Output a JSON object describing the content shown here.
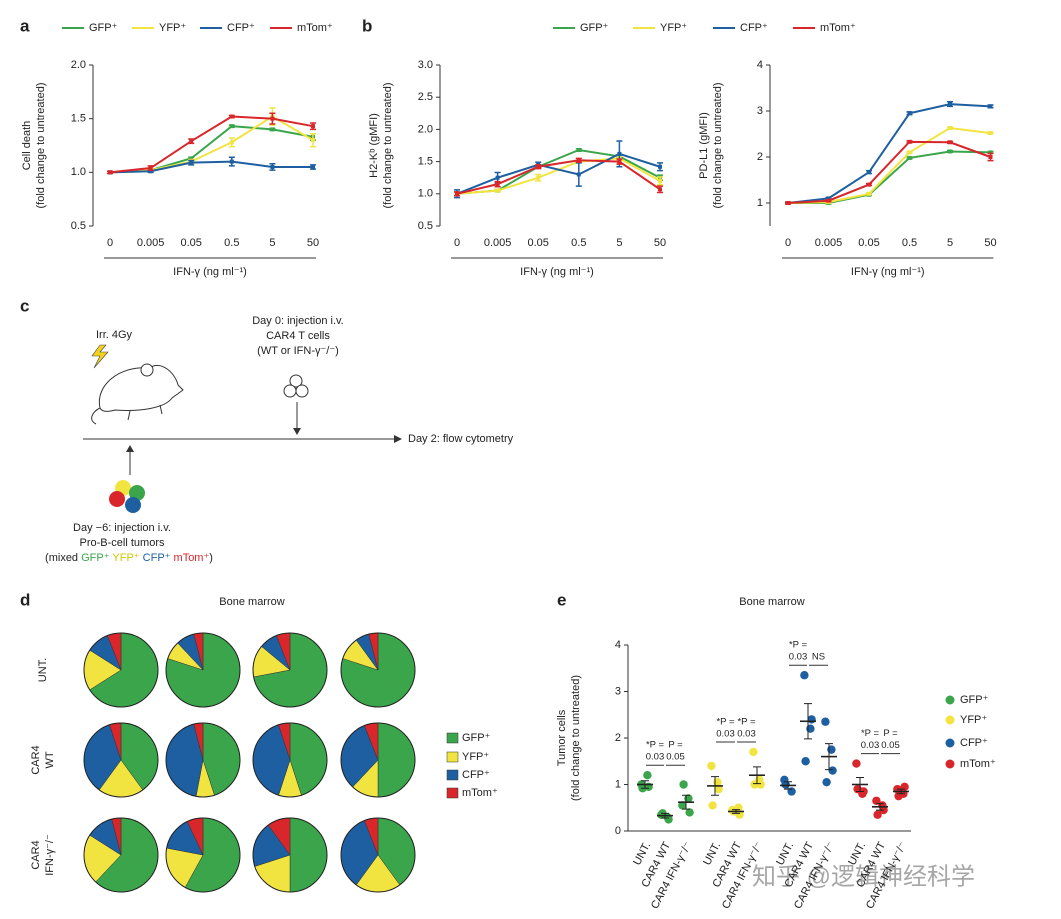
{
  "panel_labels": [
    "a",
    "b",
    "c",
    "d",
    "e"
  ],
  "chart_data": [
    {
      "type": "line",
      "ylabel": [
        "Cell death",
        "(fold change to untreated)"
      ],
      "xlabel": "IFN-γ (ng ml⁻¹)",
      "categories": [
        "0",
        "0.005",
        "0.05",
        "0.5",
        "5",
        "50"
      ],
      "ylim": [
        0.5,
        2.0
      ],
      "yticks": [
        0.5,
        {
          "value": 1.0,
          "label": "1.0"
        },
        1.5,
        {
          "value": 2.0,
          "label": "2.0"
        }
      ],
      "series": [
        {
          "name": "GFP⁺",
          "color": "#3aa54a",
          "values": [
            1.0,
            1.02,
            1.13,
            1.43,
            1.4,
            1.33
          ],
          "errors": [
            0.01,
            0.01,
            0.01,
            0.01,
            0.01,
            0.03
          ]
        },
        {
          "name": "YFP⁺",
          "color": "#f2e440",
          "values": [
            1.0,
            1.02,
            1.1,
            1.28,
            1.52,
            1.3
          ],
          "errors": [
            0.01,
            0.01,
            0.02,
            0.04,
            0.08,
            0.06
          ]
        },
        {
          "name": "CFP⁺",
          "color": "#1d5fa0",
          "values": [
            1.0,
            1.01,
            1.09,
            1.1,
            1.05,
            1.05
          ],
          "errors": [
            0.01,
            0.01,
            0.02,
            0.04,
            0.03,
            0.02
          ]
        },
        {
          "name": "mTom⁺",
          "color": "#d8262b",
          "values": [
            1.0,
            1.04,
            1.29,
            1.52,
            1.5,
            1.43
          ],
          "errors": [
            0.01,
            0.02,
            0.02,
            0.01,
            0.05,
            0.03
          ]
        }
      ]
    },
    {
      "type": "line",
      "ylabel": [
        "H2-Kᵇ (gMFI)",
        "(fold change to untreated)"
      ],
      "xlabel": "IFN-γ (ng ml⁻¹)",
      "categories": [
        "0",
        "0.005",
        "0.05",
        "0.5",
        "5",
        "50"
      ],
      "ylim": [
        0.5,
        3.0
      ],
      "yticks": [
        0.5,
        {
          "value": 1.0,
          "label": "1.0"
        },
        1.5,
        {
          "value": 2.0,
          "label": "2.0"
        },
        2.5,
        {
          "value": 3.0,
          "label": "3.0"
        }
      ],
      "series": [
        {
          "name": "GFP⁺",
          "color": "#3aa54a",
          "values": [
            1.0,
            1.05,
            1.42,
            1.68,
            1.58,
            1.25
          ],
          "errors": [
            0.02,
            0.02,
            0.02,
            0.02,
            0.02,
            0.04
          ]
        },
        {
          "name": "YFP⁺",
          "color": "#f2e440",
          "values": [
            1.0,
            1.05,
            1.25,
            1.5,
            1.55,
            1.2
          ],
          "errors": [
            0.02,
            0.02,
            0.05,
            0.02,
            0.03,
            0.06
          ]
        },
        {
          "name": "CFP⁺",
          "color": "#1d5fa0",
          "values": [
            1.0,
            1.25,
            1.45,
            1.3,
            1.62,
            1.42
          ],
          "errors": [
            0.06,
            0.08,
            0.04,
            0.18,
            0.2,
            0.06
          ]
        },
        {
          "name": "mTom⁺",
          "color": "#d8262b",
          "values": [
            1.0,
            1.15,
            1.42,
            1.52,
            1.5,
            1.07
          ],
          "errors": [
            0.03,
            0.04,
            0.03,
            0.03,
            0.04,
            0.05
          ]
        }
      ]
    },
    {
      "type": "line",
      "ylabel": [
        "PD-L1 (gMFI)",
        "(fold change to untreated)"
      ],
      "xlabel": "IFN-γ (ng ml⁻¹)",
      "categories": [
        "0",
        "0.005",
        "0.05",
        "0.5",
        "5",
        "50"
      ],
      "ylim": [
        0.5,
        4
      ],
      "yticks": [
        1,
        2,
        3,
        4
      ],
      "series": [
        {
          "color": "#3aa54a",
          "values": [
            1.0,
            1.0,
            1.18,
            1.98,
            2.12,
            2.1
          ],
          "errors": [
            0.02,
            0.02,
            0.02,
            0.02,
            0.02,
            0.02
          ]
        },
        {
          "color": "#f2e440",
          "values": [
            1.0,
            1.02,
            1.2,
            2.1,
            2.63,
            2.52
          ],
          "errors": [
            0.02,
            0.02,
            0.02,
            0.02,
            0.02,
            0.02
          ]
        },
        {
          "color": "#1d5fa0",
          "values": [
            1.0,
            1.1,
            1.67,
            2.95,
            3.15,
            3.1
          ],
          "errors": [
            0.02,
            0.02,
            0.03,
            0.03,
            0.05,
            0.03
          ]
        },
        {
          "color": "#d8262b",
          "values": [
            1.0,
            1.05,
            1.4,
            2.33,
            2.32,
            2.0
          ],
          "errors": [
            0.02,
            0.02,
            0.02,
            0.02,
            0.02,
            0.08
          ]
        }
      ]
    },
    {
      "type": "pie",
      "title": "Bone marrow",
      "categories": [
        "GFP⁺",
        "YFP⁺",
        "CFP⁺",
        "mTom⁺"
      ],
      "colors": [
        "#3aa54a",
        "#f2e440",
        "#1d5fa0",
        "#d8262b"
      ],
      "rows": [
        {
          "label": [
            "UNT."
          ],
          "pies": [
            [
              66,
              18,
              10,
              6
            ],
            [
              80,
              8,
              8,
              4
            ],
            [
              72,
              14,
              8,
              6
            ],
            [
              80,
              10,
              6,
              4
            ]
          ]
        },
        {
          "label": [
            "CAR4",
            "WT"
          ],
          "pies": [
            [
              40,
              20,
              35,
              5
            ],
            [
              45,
              8,
              43,
              4
            ],
            [
              45,
              10,
              40,
              5
            ],
            [
              50,
              12,
              32,
              6
            ]
          ]
        },
        {
          "label": [
            "CAR4",
            "IFN-γ⁻/⁻"
          ],
          "pies": [
            [
              62,
              22,
              12,
              4
            ],
            [
              58,
              20,
              15,
              7
            ],
            [
              50,
              20,
              20,
              10
            ],
            [
              40,
              20,
              34,
              6
            ]
          ]
        }
      ]
    },
    {
      "type": "dot",
      "title": "Bone marrow",
      "ylabel": [
        "Tumor cells",
        "(fold change to untreated)"
      ],
      "ylim": [
        0,
        4
      ],
      "yticks": [
        0,
        1,
        2,
        3,
        4
      ],
      "conditions": [
        "UNT.",
        "CAR4 WT",
        "CAR4 IFN-γ⁻/⁻"
      ],
      "series": [
        {
          "name": "GFP⁺",
          "color": "#3aa54a",
          "groups": [
            {
              "points": [
                1.0,
                0.95,
                0.92,
                1.2
              ],
              "mean": 1.0,
              "sem": 0.08
            },
            {
              "points": [
                0.35,
                0.25,
                0.38,
                0.3
              ],
              "mean": 0.33,
              "sem": 0.05
            },
            {
              "points": [
                0.55,
                0.4,
                1.0,
                0.7
              ],
              "mean": 0.62,
              "sem": 0.15
            }
          ],
          "annotations": [
            [
              "*P =",
              "0.03"
            ],
            [
              "P =",
              "0.05"
            ]
          ]
        },
        {
          "name": "YFP⁺",
          "color": "#f2e440",
          "groups": [
            {
              "points": [
                1.4,
                0.9,
                0.55,
                1.05
              ],
              "mean": 0.97,
              "sem": 0.2
            },
            {
              "points": [
                0.45,
                0.35,
                0.42,
                0.5
              ],
              "mean": 0.42,
              "sem": 0.04
            },
            {
              "points": [
                1.7,
                1.0,
                1.0,
                1.1
              ],
              "mean": 1.2,
              "sem": 0.18
            }
          ],
          "annotations": [
            [
              "*P =",
              "0.03"
            ],
            [
              "*P =",
              "0.03"
            ]
          ]
        },
        {
          "name": "CFP⁺",
          "color": "#1d5fa0",
          "groups": [
            {
              "points": [
                1.1,
                0.85,
                1.0
              ],
              "mean": 0.98,
              "sem": 0.08
            },
            {
              "points": [
                3.35,
                2.4,
                1.5,
                2.2
              ],
              "mean": 2.36,
              "sem": 0.38
            },
            {
              "points": [
                2.35,
                1.3,
                1.05,
                1.75
              ],
              "mean": 1.6,
              "sem": 0.28
            }
          ],
          "annotations": [
            [
              "*P =",
              "0.03"
            ],
            [
              "NS"
            ]
          ]
        },
        {
          "name": "mTom⁺",
          "color": "#d8262b",
          "groups": [
            {
              "points": [
                1.45,
                0.85,
                0.9,
                0.8
              ],
              "mean": 1.0,
              "sem": 0.15
            },
            {
              "points": [
                0.65,
                0.45,
                0.35,
                0.55
              ],
              "mean": 0.52,
              "sem": 0.07
            },
            {
              "points": [
                0.9,
                0.95,
                0.75,
                0.8
              ],
              "mean": 0.85,
              "sem": 0.05
            }
          ],
          "annotations": [
            [
              "*P =",
              "0.03"
            ],
            [
              "P =",
              "0.05"
            ]
          ]
        }
      ]
    }
  ],
  "diagram": {
    "irradiation": "Irr. 4Gy",
    "injection_day0": [
      "Day 0: injection i.v.",
      "CAR4 T cells",
      "(WT or IFN-γ⁻/⁻)"
    ],
    "readout": "Day 2: flow cytometry",
    "injection_day_minus6": [
      "Day −6: injection i.v.",
      "Pro-B-cell tumors"
    ],
    "tumor_mix": [
      "(mixed ",
      "GFP⁺ ",
      "YFP⁺ ",
      "CFP⁺ ",
      "mTom⁺",
      ")"
    ]
  },
  "watermark": "知乎 @逻辑神经科学"
}
